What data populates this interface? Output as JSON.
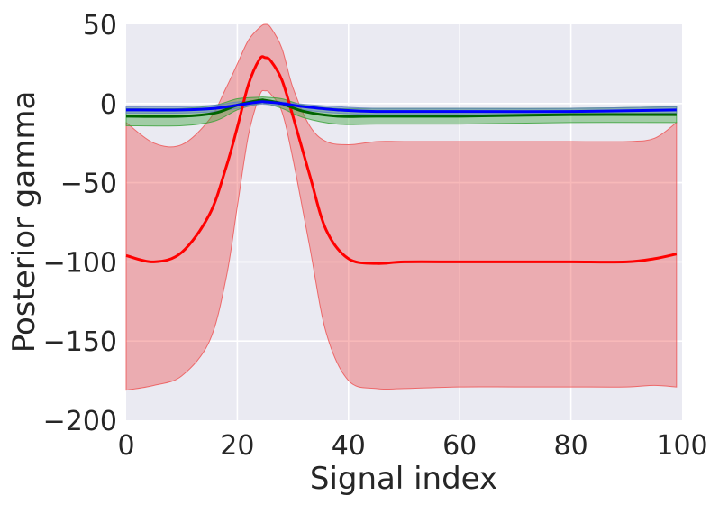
{
  "chart_data": {
    "type": "line",
    "title": "",
    "xlabel": "Signal index",
    "ylabel": "Posterior gamma",
    "xlim": [
      0,
      100
    ],
    "ylim": [
      -200,
      50
    ],
    "xticks": [
      0,
      20,
      40,
      60,
      80,
      100
    ],
    "yticks": [
      -200,
      -150,
      -100,
      -50,
      0,
      50
    ],
    "ytick_labels": [
      "−200",
      "−150",
      "−100",
      "−50",
      "0",
      "50"
    ],
    "grid": true,
    "legend": "none",
    "background": "#eaeaf2",
    "series": [
      {
        "color": "#ff0000",
        "band_color": "#ee5050",
        "x": [
          0,
          5,
          10,
          15,
          18,
          20,
          22,
          24,
          25,
          26,
          28,
          30,
          33,
          36,
          40,
          45,
          50,
          60,
          70,
          80,
          90,
          95,
          99
        ],
        "mean": [
          -96,
          -100,
          -94,
          -70,
          -40,
          -15,
          12,
          28,
          29,
          27,
          15,
          -8,
          -45,
          -80,
          -98,
          -101,
          -100,
          -100,
          -100,
          -100,
          -100,
          -98,
          -95
        ],
        "upper": [
          -12,
          -25,
          -26,
          -10,
          10,
          25,
          40,
          48,
          50,
          48,
          35,
          10,
          -14,
          -24,
          -26,
          -24,
          -24,
          -24,
          -24,
          -24,
          -24,
          -22,
          -12
        ],
        "lower": [
          -181,
          -178,
          -172,
          -150,
          -110,
          -65,
          -20,
          5,
          8,
          6,
          -5,
          -35,
          -90,
          -145,
          -175,
          -180,
          -180,
          -179,
          -179,
          -179,
          -179,
          -178,
          -179
        ]
      },
      {
        "color": "#006400",
        "band_color": "#34a034",
        "x": [
          0,
          10,
          16,
          20,
          24,
          25,
          28,
          32,
          38,
          45,
          60,
          80,
          99
        ],
        "mean": [
          -8,
          -8,
          -6,
          -1,
          2,
          2,
          0,
          -5,
          -8,
          -8,
          -8,
          -7,
          -7
        ],
        "upper": [
          -3,
          -3,
          -1,
          3,
          4,
          4,
          3,
          -1,
          -3,
          -3,
          -3,
          -3,
          -2
        ],
        "lower": [
          -14,
          -14,
          -11,
          -4,
          0,
          0,
          -3,
          -9,
          -13,
          -13,
          -13,
          -12,
          -12
        ]
      },
      {
        "color": "#0000ff",
        "band_color": "#6080c0",
        "x": [
          0,
          10,
          16,
          20,
          24,
          25,
          28,
          32,
          38,
          45,
          60,
          80,
          99
        ],
        "mean": [
          -4,
          -4,
          -3,
          -1,
          1,
          1,
          0,
          -2,
          -4,
          -5,
          -5,
          -5,
          -4
        ],
        "upper": [
          -2,
          -2,
          -1,
          1,
          2,
          2,
          1,
          -0.5,
          -2,
          -3,
          -3,
          -3,
          -2
        ],
        "lower": [
          -6,
          -6,
          -5,
          -3,
          -0.5,
          -0.5,
          -1.5,
          -4,
          -6,
          -7,
          -7,
          -7,
          -6
        ]
      }
    ]
  }
}
